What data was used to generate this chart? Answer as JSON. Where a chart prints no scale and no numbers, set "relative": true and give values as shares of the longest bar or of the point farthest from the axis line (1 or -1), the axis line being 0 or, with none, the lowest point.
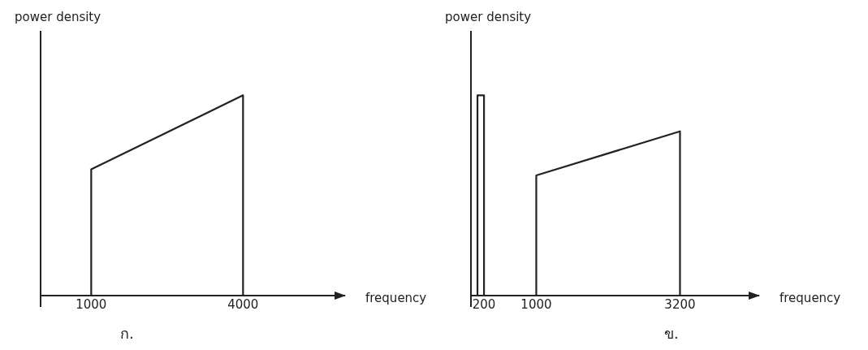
{
  "chart_data": [
    {
      "type": "line",
      "relative": true,
      "ylabel": "power density",
      "xlabel": "frequency",
      "xlim": [
        0,
        6000
      ],
      "xticks": [
        1000,
        4000
      ],
      "grid": false,
      "legend": false,
      "marker": "none",
      "line_style": "solid",
      "annotations": [
        "ก."
      ],
      "series": [
        {
          "color": "#222222",
          "x": [
            1000,
            1000,
            4000,
            4000
          ],
          "values": [
            0,
            0.63,
            1,
            0
          ]
        }
      ]
    },
    {
      "type": "line",
      "relative": true,
      "ylabel": "power density",
      "xlabel": "frequency",
      "xlim": [
        0,
        4400
      ],
      "xticks": [
        200,
        1000,
        3200
      ],
      "grid": false,
      "legend": false,
      "marker": "none",
      "line_style": "solid",
      "annotations": [
        "ข."
      ],
      "series": [
        {
          "color": "#222222",
          "x": [
            100,
            100,
            200,
            200
          ],
          "values": [
            0,
            1,
            1,
            0
          ]
        },
        {
          "color": "#222222",
          "x": [
            1000,
            1000,
            3200,
            3200
          ],
          "values": [
            0,
            0.6,
            0.82,
            0
          ]
        }
      ]
    }
  ]
}
